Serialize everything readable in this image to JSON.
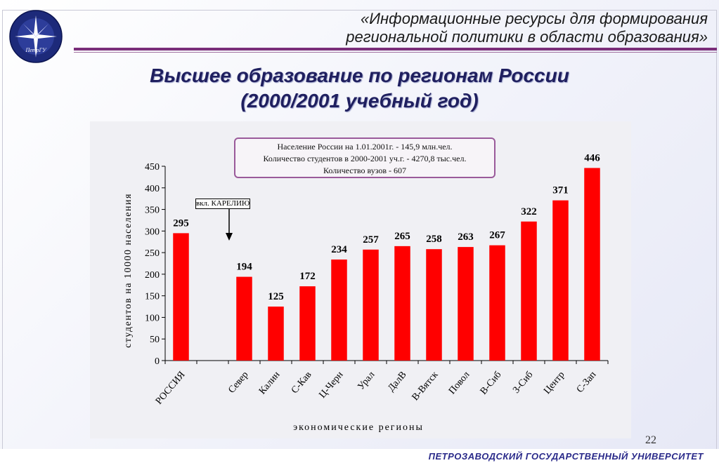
{
  "header": {
    "title_line1": "«Информационные ресурсы для формирования",
    "title_line2": "региональной политики в области образования»"
  },
  "logo": {
    "icon": "star-compass-icon",
    "text": "ПетрГУ",
    "ring_text": "Петрозаводский государственный университет"
  },
  "main_title": {
    "line1": "Высшее образование по регионам России",
    "line2": "(2000/2001 учебный год)"
  },
  "info_box": {
    "line1": "Население России на 1.01.2001г. - 145,9 млн.чел.",
    "line2": "Количество студентов в 2000-2001 уч.г. - 4270,8 тыс.чел.",
    "line3": "Количество вузов - 607"
  },
  "note": {
    "label": "вкл. КАРЕЛИЮ"
  },
  "chart_data": {
    "type": "bar",
    "categories": [
      "РОССИЯ",
      "",
      "Север",
      "Калин",
      "С-Кав",
      "Ц-Черн",
      "Урал",
      "ДалВ",
      "В-Вятск",
      "Повол",
      "В-Сиб",
      "З-Сиб",
      "Центр",
      "С-Зап"
    ],
    "values": [
      295,
      null,
      194,
      125,
      172,
      234,
      257,
      265,
      258,
      263,
      267,
      322,
      371,
      446
    ],
    "data_labels": [
      "295",
      "",
      "194",
      "125",
      "172",
      "234",
      "257",
      "265",
      "258",
      "263",
      "267",
      "322",
      "371",
      "446"
    ],
    "xlabel": "экономические регионы",
    "ylabel": "студентов на 10000 населения",
    "ylim": [
      0,
      450
    ],
    "yticks": [
      0,
      50,
      100,
      150,
      200,
      250,
      300,
      350,
      400,
      450
    ],
    "bar_color": "#ff0000",
    "grid": false
  },
  "page_number": "22",
  "footer": {
    "text": "ПЕТРОЗАВОДСКИЙ ГОСУДАРСТВЕННЫЙ УНИВЕРСИТЕТ"
  }
}
